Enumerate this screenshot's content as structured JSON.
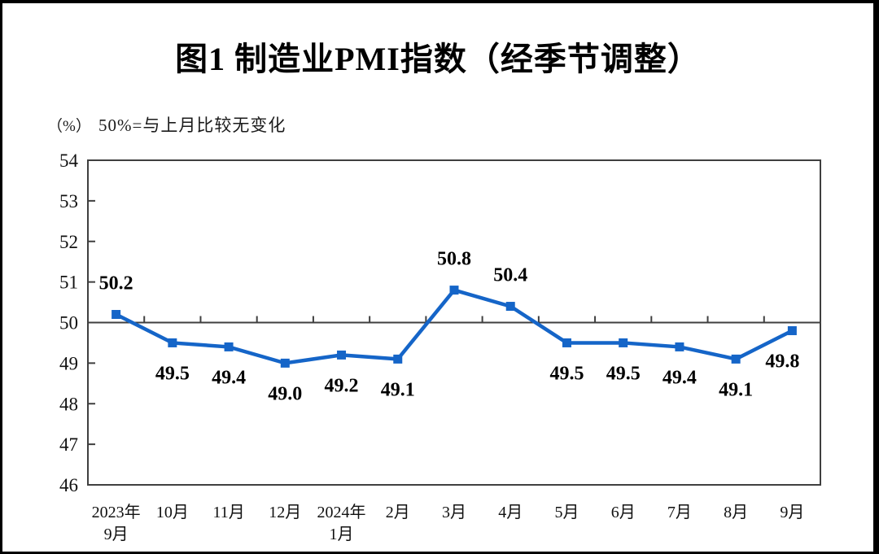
{
  "page": {
    "background": "#ffffff",
    "frame_border_color": "#000000"
  },
  "header": {
    "unit": "（%）",
    "note": "50%=与上月比较无变化"
  },
  "chart_data": {
    "type": "line",
    "title": "图1  制造业PMI指数（经季节调整）",
    "ylabel_unit": "（%）",
    "annotation": "50%=与上月比较无变化",
    "categories": [
      [
        "2023年",
        "9月"
      ],
      [
        "10月"
      ],
      [
        "11月"
      ],
      [
        "12月"
      ],
      [
        "2024年",
        "1月"
      ],
      [
        "2月"
      ],
      [
        "3月"
      ],
      [
        "4月"
      ],
      [
        "5月"
      ],
      [
        "6月"
      ],
      [
        "7月"
      ],
      [
        "8月"
      ],
      [
        "9月"
      ]
    ],
    "series": [
      {
        "name": "制造业PMI",
        "values": [
          50.2,
          49.5,
          49.4,
          49.0,
          49.2,
          49.1,
          50.8,
          50.4,
          49.5,
          49.5,
          49.4,
          49.1,
          49.8
        ],
        "labels": [
          "50.2",
          "49.5",
          "49.4",
          "49.0",
          "49.2",
          "49.1",
          "50.8",
          "50.4",
          "49.5",
          "49.5",
          "49.4",
          "49.1",
          "49.8"
        ]
      }
    ],
    "ylim": [
      46,
      54
    ],
    "ytick_step": 1,
    "yticks": [
      46,
      47,
      48,
      49,
      50,
      51,
      52,
      53,
      54
    ],
    "reference_line": 50,
    "grid": false,
    "legend_position": "none",
    "marker": "square",
    "line_color": "#1565C8",
    "axis_color": "#3f3f3f",
    "text_color": "#000000",
    "label_placement": [
      "above",
      "below",
      "below",
      "below",
      "below",
      "below",
      "above",
      "above",
      "below",
      "below",
      "below",
      "below",
      "below"
    ],
    "label_dx": [
      0,
      0,
      0,
      0,
      0,
      0,
      0,
      0,
      0,
      0,
      0,
      0,
      -12
    ]
  }
}
